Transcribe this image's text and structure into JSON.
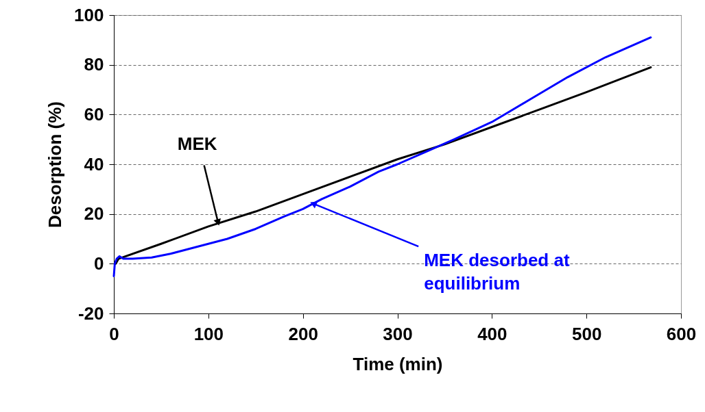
{
  "chart_data": {
    "type": "line",
    "xlabel": "Time (min)",
    "ylabel": "Desorption (%)",
    "xlim": [
      0,
      600
    ],
    "xticks": [
      0,
      100,
      200,
      300,
      400,
      500,
      600
    ],
    "ylim": [
      -20,
      100
    ],
    "yticks": [
      -20,
      0,
      20,
      40,
      60,
      80,
      100
    ],
    "grid": "y",
    "marker": "none",
    "line_style": "solid",
    "series": [
      {
        "color": "#000000",
        "x": [
          2,
          5,
          50,
          100,
          150,
          200,
          250,
          300,
          350,
          400,
          450,
          500,
          568
        ],
        "values": [
          0,
          2,
          8,
          15,
          21,
          28,
          35,
          42,
          48,
          55,
          62,
          69,
          79
        ]
      },
      {
        "color": "#0000ff",
        "x": [
          0,
          1,
          3,
          6,
          10,
          20,
          40,
          60,
          80,
          100,
          120,
          150,
          180,
          200,
          220,
          250,
          280,
          300,
          330,
          360,
          400,
          440,
          480,
          520,
          568
        ],
        "values": [
          -5,
          0,
          2,
          3,
          2,
          2,
          2.5,
          4,
          6,
          8,
          10,
          14,
          19,
          22,
          26,
          31,
          37,
          40,
          45,
          50,
          57,
          66,
          75,
          83,
          91
        ]
      }
    ],
    "annotations": [
      {
        "text": "MEK",
        "x": 110,
        "y": 17
      },
      {
        "text": "MEK desorbed at equilibrium",
        "x": 212,
        "y": 24
      }
    ]
  }
}
